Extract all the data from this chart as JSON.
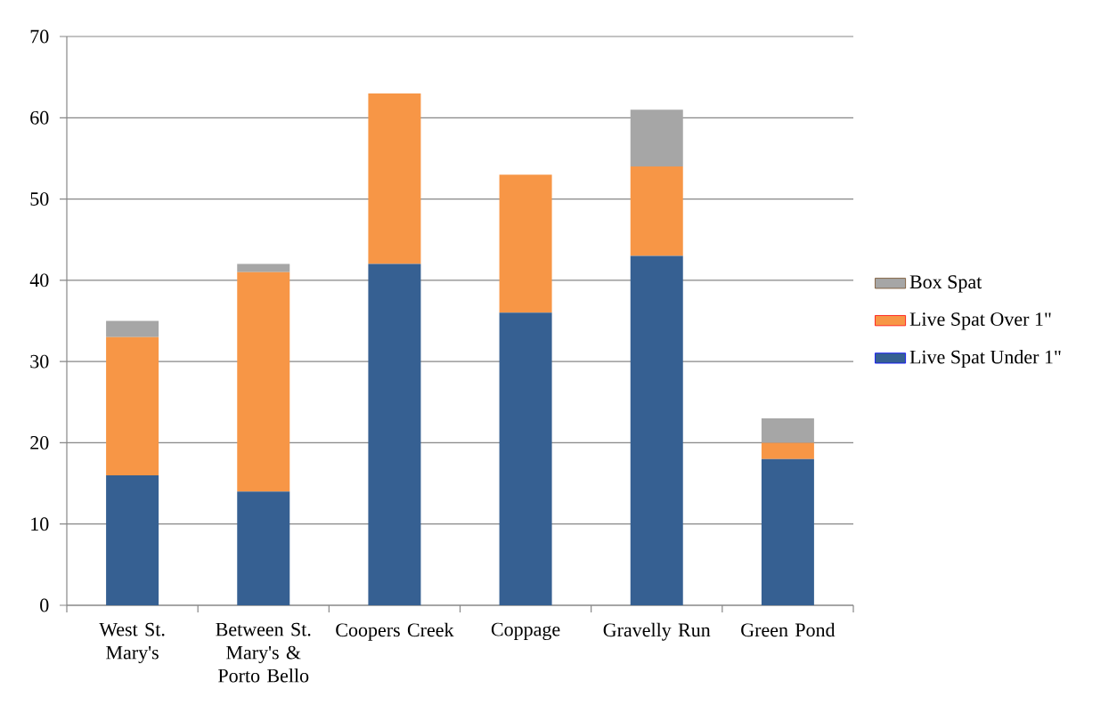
{
  "chart_data": {
    "type": "bar",
    "stacked": true,
    "categories": [
      "West St. Mary's",
      "Between St. Mary's & Porto Bello",
      "Coopers Creek",
      "Coppage",
      "Gravelly Run",
      "Green Pond"
    ],
    "series": [
      {
        "name": "Live Spat Under 1\"",
        "color": "#366092",
        "values": [
          16,
          14,
          42,
          36,
          43,
          18
        ]
      },
      {
        "name": "Live Spat Over 1\"",
        "color": "#f79646",
        "values": [
          17,
          27,
          21,
          17,
          11,
          2
        ]
      },
      {
        "name": "Box Spat",
        "color": "#a6a6a6",
        "values": [
          2,
          1,
          0,
          0,
          7,
          3
        ]
      }
    ],
    "ylim": [
      0,
      70
    ],
    "yticks": [
      0,
      10,
      20,
      30,
      40,
      50,
      60,
      70
    ],
    "grid": "y",
    "legend": "right"
  }
}
